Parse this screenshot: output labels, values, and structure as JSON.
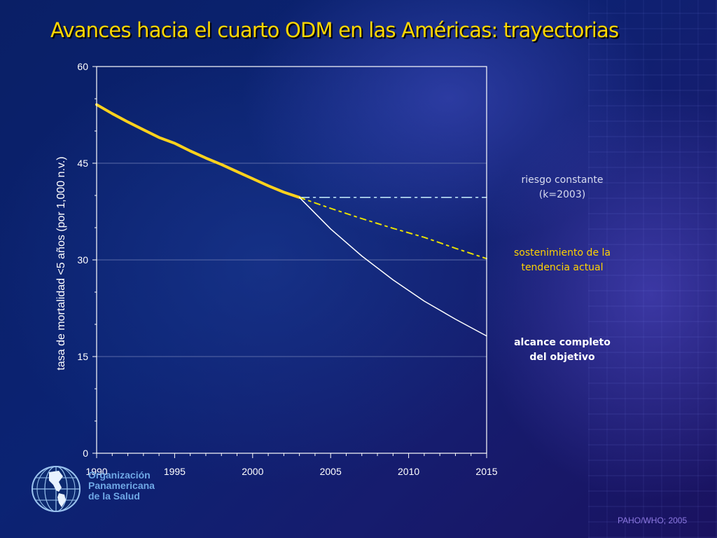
{
  "slide": {
    "title": "Avances hacia el cuarto ODM en las Américas: trayectorias",
    "credit": "PAHO/WHO; 2005"
  },
  "organization": {
    "line1": "Organización",
    "line2": "Panamericana",
    "line3": "de la Salud"
  },
  "legend": {
    "riesgo_line1": "riesgo constante",
    "riesgo_line2": "(k=2003)",
    "sost_line1": "sostenimiento de la",
    "sost_line2": "tendencia actual",
    "alcance_line1": "alcance completo",
    "alcance_line2": "del objetivo"
  },
  "colors": {
    "historical": "#ffd21c",
    "trend_dashed": "#e8e000",
    "constant_dashdot": "#c8f0ff",
    "goal_line": "#ffffff",
    "plot_border": "#ffffff",
    "gridline": "#5a6aa8",
    "axis_text": "#ffffff"
  },
  "chart_data": {
    "type": "line",
    "title": "Avances hacia el cuarto ODM en las Américas: trayectorias",
    "xlabel": "",
    "ylabel": "tasa de mortalidad <5 años (por 1,000 n.v.)",
    "xlim": [
      1990,
      2015
    ],
    "ylim": [
      0,
      60
    ],
    "xticks": [
      1990,
      1995,
      2000,
      2005,
      2010,
      2015
    ],
    "yticks": [
      0,
      15,
      30,
      45,
      60
    ],
    "grid": "horizontal",
    "series": [
      {
        "style": "solid-thick",
        "x": [
          1990,
          1991,
          1992,
          1993,
          1994,
          1995,
          1996,
          1997,
          1998,
          1999,
          2000,
          2001,
          2002,
          2003
        ],
        "y": [
          54.1,
          52.7,
          51.4,
          50.2,
          49.0,
          48.1,
          46.9,
          45.8,
          44.8,
          43.7,
          42.6,
          41.5,
          40.5,
          39.7
        ]
      },
      {
        "name": "riesgo constante (k=2003)",
        "style": "dash-dot",
        "x": [
          2003,
          2015
        ],
        "y": [
          39.7,
          39.7
        ]
      },
      {
        "name": "sostenimiento de la tendencia actual",
        "style": "dashed",
        "x": [
          2003,
          2005,
          2007,
          2009,
          2011,
          2013,
          2015
        ],
        "y": [
          39.7,
          38.0,
          36.4,
          34.9,
          33.5,
          31.8,
          30.2
        ]
      },
      {
        "name": "alcance completo del objetivo",
        "style": "solid-thin",
        "x": [
          2003,
          2005,
          2007,
          2009,
          2011,
          2013,
          2015
        ],
        "y": [
          39.7,
          34.8,
          30.6,
          26.9,
          23.6,
          20.8,
          18.2
        ]
      }
    ]
  }
}
